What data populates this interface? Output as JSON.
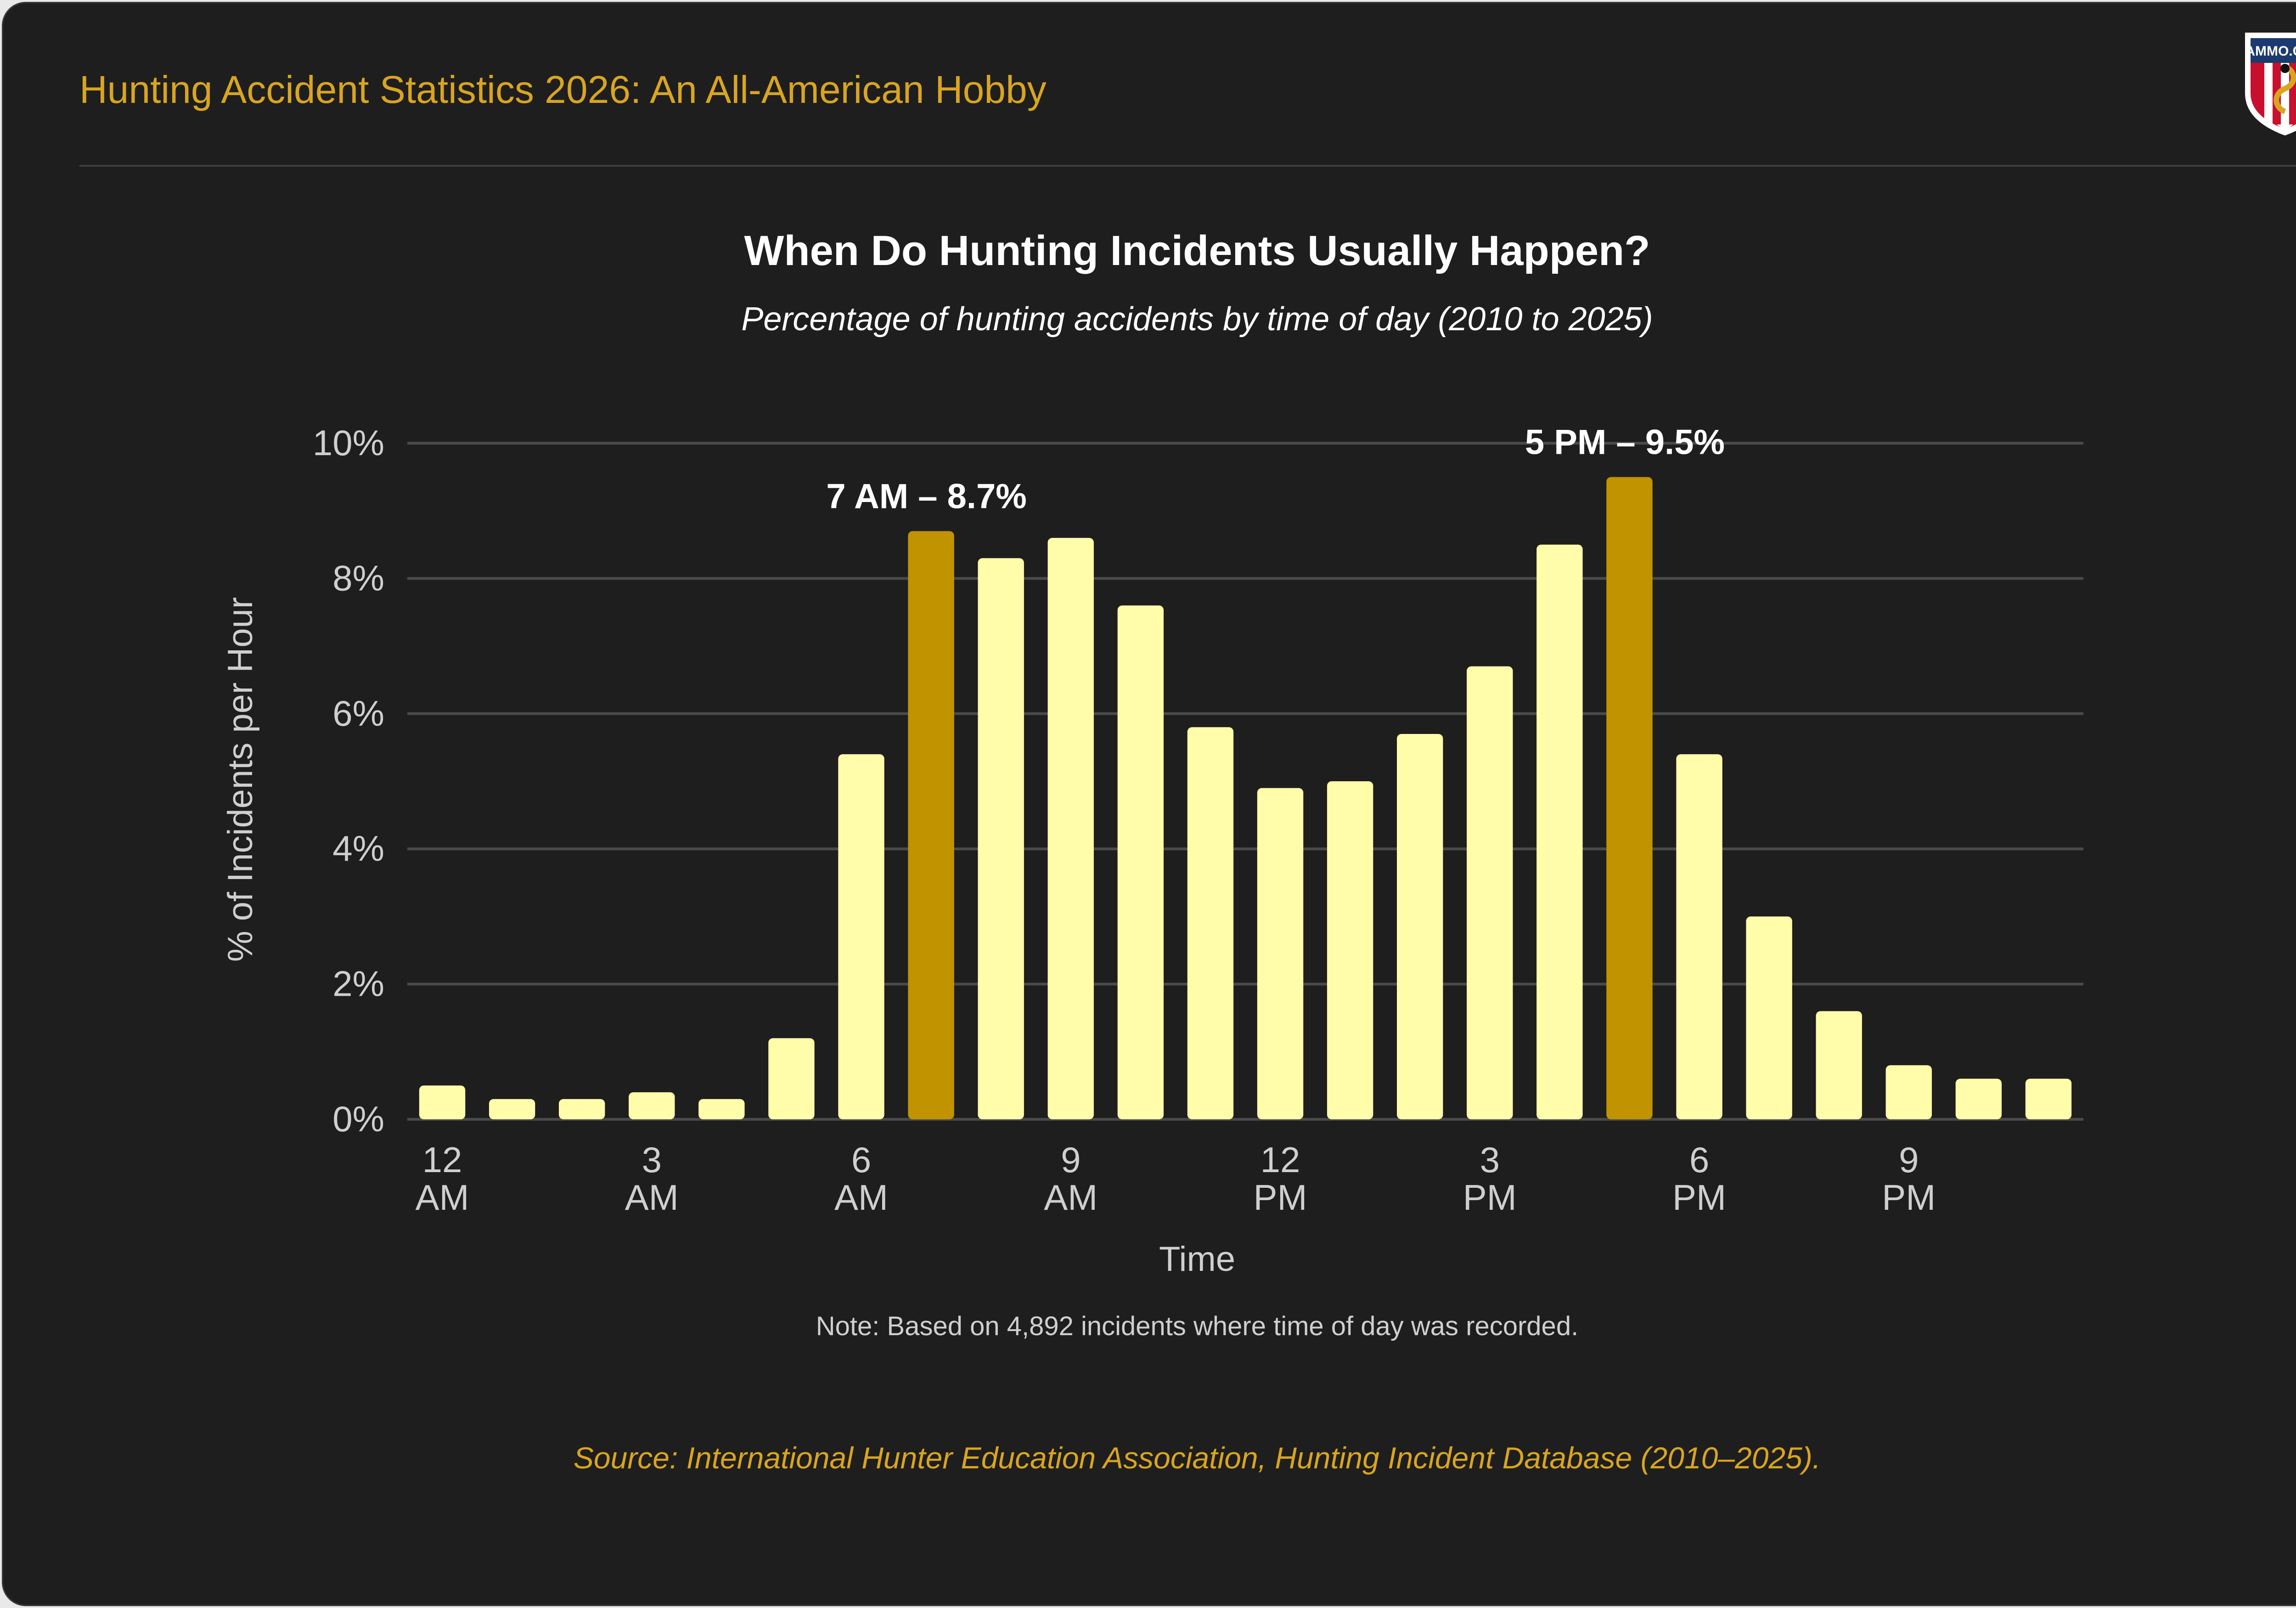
{
  "header": {
    "title": "Hunting Accident Statistics 2026: An All-American Hobby",
    "logo_text": "AMMO.COM"
  },
  "colors": {
    "background": "#1e1e1e",
    "accent": "#d9a520",
    "bar": "#fffcaa",
    "bar_highlight": "#c19300",
    "grid": "#4a4a4a",
    "text": "#ffffff",
    "muted": "#cfcfcf"
  },
  "chart_data": {
    "type": "bar",
    "title": "When Do Hunting Incidents Usually Happen?",
    "subtitle": "Percentage of hunting accidents by time of day (2010 to 2025)",
    "xlabel": "Time",
    "ylabel": "% of Incidents per Hour",
    "ylim": [
      0,
      10
    ],
    "yticks": [
      0,
      2,
      4,
      6,
      8,
      10
    ],
    "ytick_labels": [
      "0%",
      "2%",
      "4%",
      "6%",
      "8%",
      "10%"
    ],
    "xtick_labels": [
      {
        "index": 0,
        "lines": [
          "12",
          "AM"
        ]
      },
      {
        "index": 3,
        "lines": [
          "3",
          "AM"
        ]
      },
      {
        "index": 6,
        "lines": [
          "6",
          "AM"
        ]
      },
      {
        "index": 9,
        "lines": [
          "9",
          "AM"
        ]
      },
      {
        "index": 12,
        "lines": [
          "12",
          "PM"
        ]
      },
      {
        "index": 15,
        "lines": [
          "3",
          "PM"
        ]
      },
      {
        "index": 18,
        "lines": [
          "6",
          "PM"
        ]
      },
      {
        "index": 21,
        "lines": [
          "9",
          "PM"
        ]
      }
    ],
    "values": [
      0.5,
      0.3,
      0.3,
      0.4,
      0.3,
      1.2,
      5.4,
      8.7,
      8.3,
      8.6,
      7.6,
      5.8,
      4.9,
      5.0,
      5.7,
      6.7,
      8.5,
      9.5,
      5.4,
      3.0,
      1.6,
      0.8,
      0.6,
      0.6
    ],
    "highlights": [
      {
        "index": 7,
        "label": "7 AM – 8.7%"
      },
      {
        "index": 17,
        "label": "5 PM – 9.5%"
      }
    ],
    "grid": true,
    "legend": "none"
  },
  "footer": {
    "note": "Note: Based on 4,892 incidents where time of day was recorded.",
    "source": "Source: International Hunter Education Association, Hunting Incident Database (2010–2025)."
  }
}
